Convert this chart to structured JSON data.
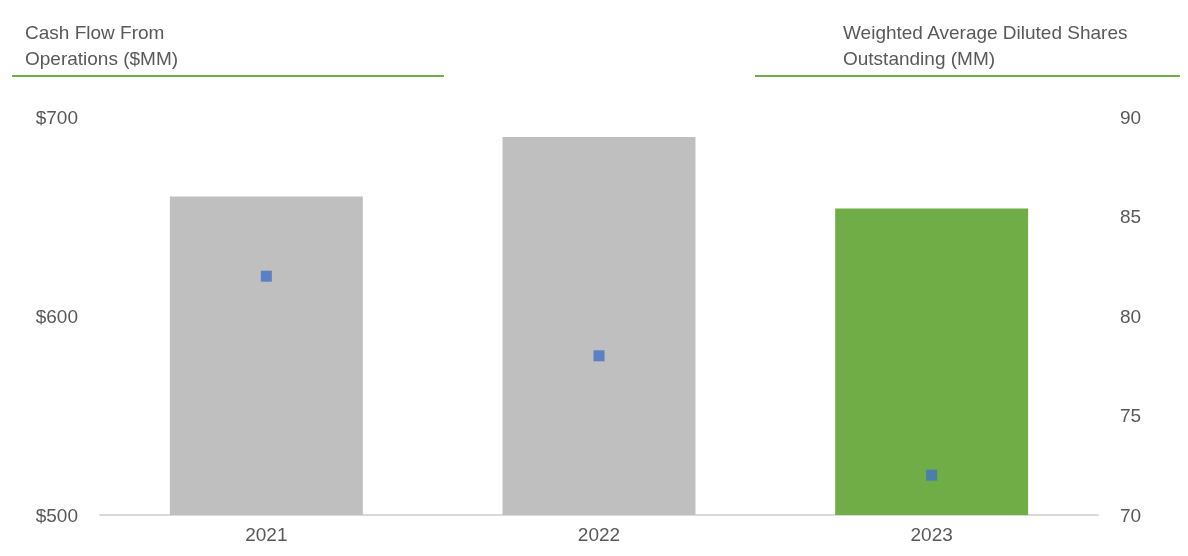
{
  "chart_data": {
    "type": "bar",
    "ylabel": "Cash Flow From Operations ($MM)",
    "y2label": "Weighted Average Diluted Shares Outstanding (MM)",
    "categories": [
      "2021",
      "2022",
      "2023"
    ],
    "series": [
      {
        "values": [
          660,
          690,
          654
        ],
        "colors": [
          "#bfbfbf",
          "#bfbfbf",
          "#70ad47"
        ]
      },
      {
        "type": "scatter",
        "axis": "y2",
        "color": "#4472c4",
        "marker": "square",
        "values": [
          82,
          78,
          72
        ]
      }
    ],
    "ylim": [
      500,
      700
    ],
    "yticks": [
      {
        "value": 500,
        "label": "$500"
      },
      {
        "value": 600,
        "label": "$600"
      },
      {
        "value": 700,
        "label": "$700"
      }
    ],
    "y2lim": [
      70,
      90
    ],
    "y2ticks": [
      70,
      75,
      80,
      85,
      90
    ],
    "grid": false
  }
}
